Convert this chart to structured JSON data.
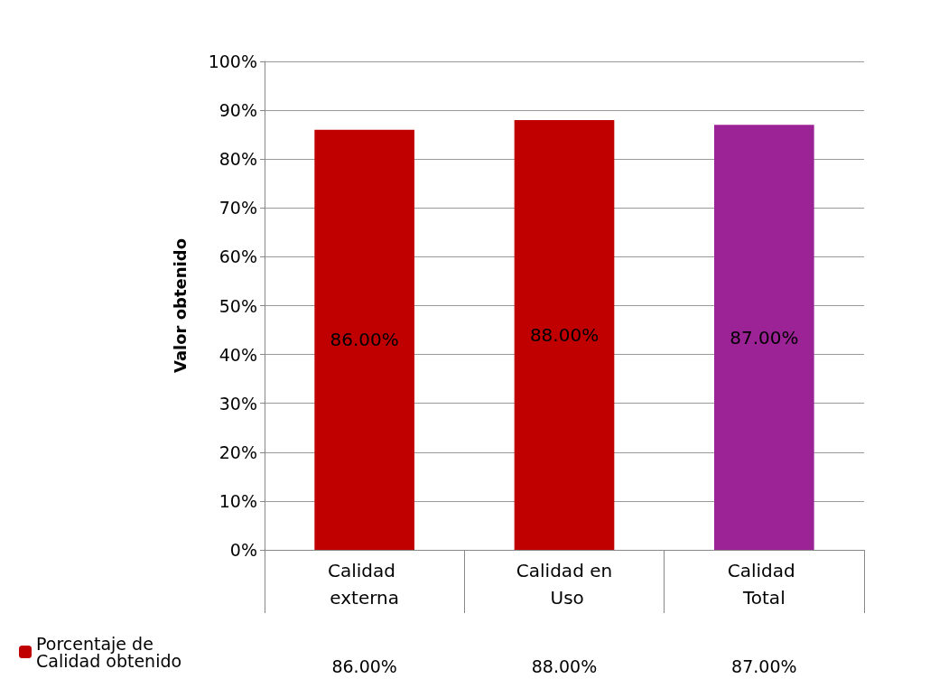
{
  "chart_data": {
    "type": "bar",
    "ylabel": "Valor obtenido",
    "categories": [
      "Calidad externa",
      "Calidad en Uso",
      "Calidad Total"
    ],
    "series": [
      {
        "name": "Porcentaje de Calidad obtenido",
        "color": "#c00000",
        "colors": [
          "#c00000",
          "#c00000",
          "#9c2396"
        ],
        "values": [
          86,
          88,
          87
        ],
        "value_labels": [
          "86.00%",
          "88.00%",
          "87.00%"
        ]
      }
    ],
    "ylim": [
      0,
      100
    ],
    "yticks": [
      {
        "value": 0,
        "label": "0%"
      },
      {
        "value": 10,
        "label": "10%"
      },
      {
        "value": 20,
        "label": "20%"
      },
      {
        "value": 30,
        "label": "30%"
      },
      {
        "value": 40,
        "label": "40%"
      },
      {
        "value": 50,
        "label": "50%"
      },
      {
        "value": 60,
        "label": "60%"
      },
      {
        "value": 70,
        "label": "70%"
      },
      {
        "value": 80,
        "label": "80%"
      },
      {
        "value": 90,
        "label": "90%"
      },
      {
        "value": 100,
        "label": "100%"
      }
    ],
    "grid": "y",
    "legend": "bottom left"
  }
}
